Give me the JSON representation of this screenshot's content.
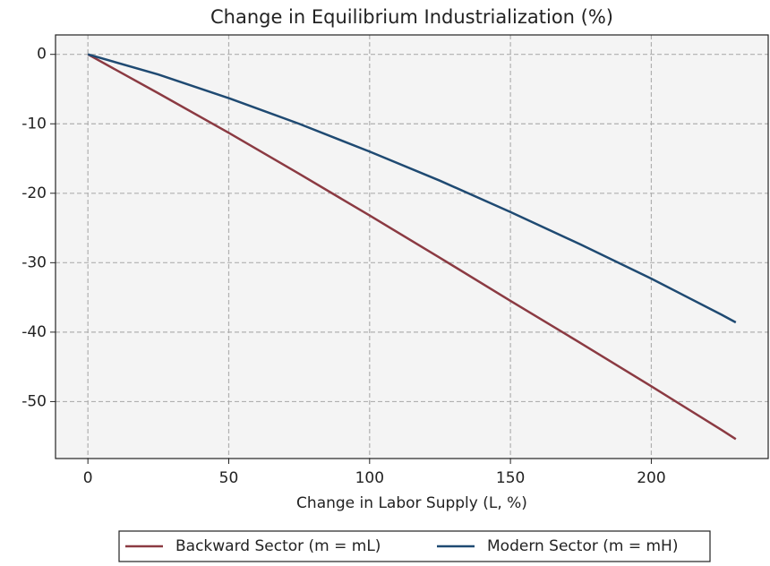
{
  "chart_data": {
    "type": "line",
    "title": "Change in Equilibrium Industrialization (%)",
    "x_label": "Change in Labor Supply (L, %)",
    "x": [
      0,
      25,
      50,
      75,
      100,
      125,
      150,
      175,
      200,
      225,
      230
    ],
    "series": [
      {
        "name": "Backward Sector (m = mL)",
        "color": "#8b3a42",
        "values": [
          0,
          -5.6,
          -11.3,
          -17.2,
          -23.2,
          -29.3,
          -35.5,
          -41.6,
          -47.8,
          -54.1,
          -55.4
        ]
      },
      {
        "name": "Modern Sector (m = mH)",
        "color": "#1f4a72",
        "values": [
          0,
          -2.9,
          -6.3,
          -10.0,
          -14.0,
          -18.2,
          -22.7,
          -27.4,
          -32.3,
          -37.5,
          -38.6
        ]
      }
    ],
    "xlim": [
      -11.5,
      241.5
    ],
    "xticks": [
      0,
      50,
      100,
      150,
      200
    ],
    "ylim": [
      -58.2,
      2.8
    ],
    "yticks": [
      0,
      -10,
      -20,
      -30,
      -40,
      -50
    ],
    "grid": true,
    "legend": "bottom"
  }
}
